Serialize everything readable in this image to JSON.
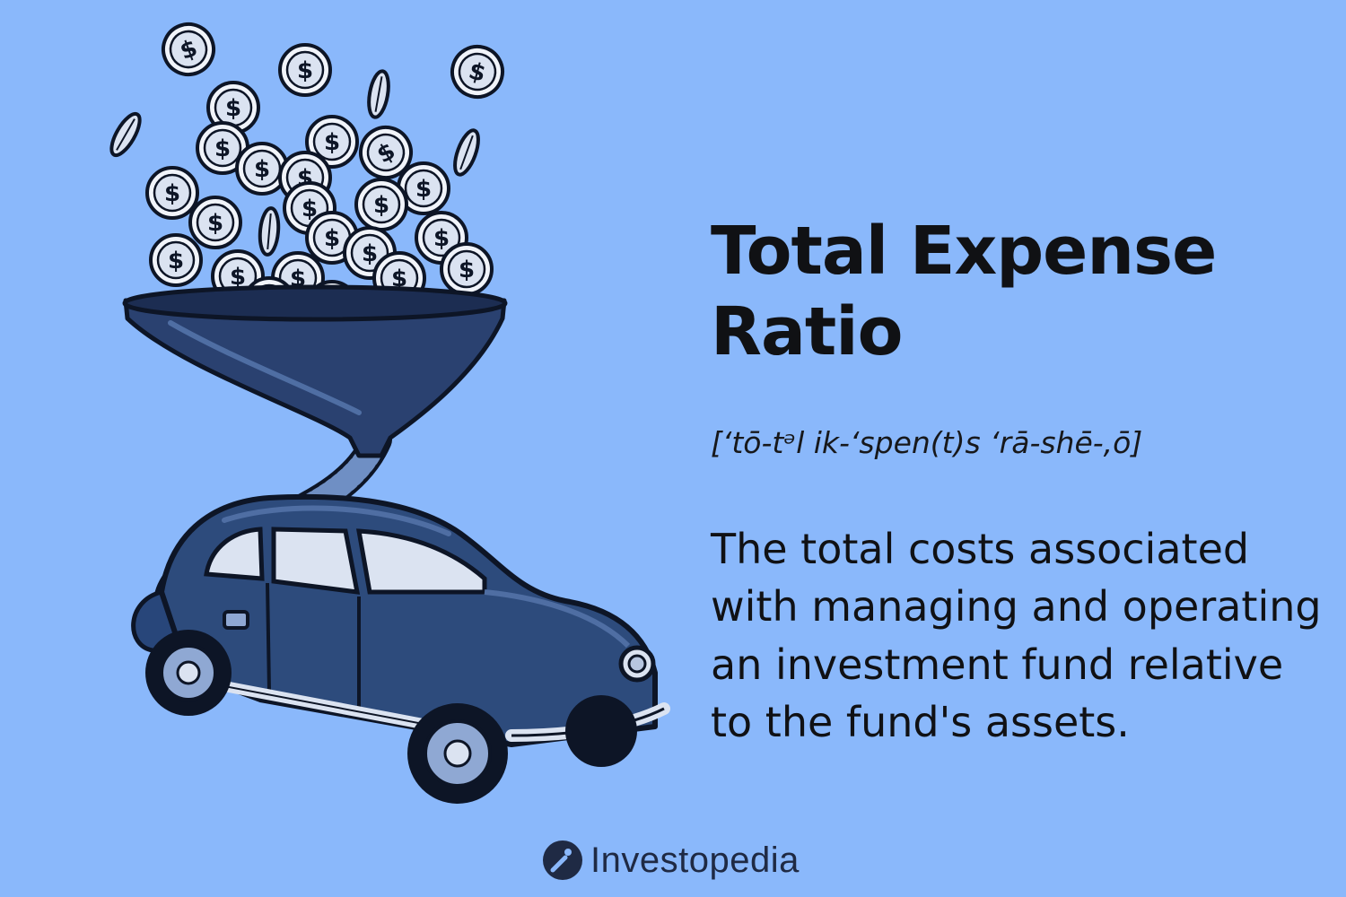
{
  "title": "Total Expense Ratio",
  "pronunciation": "[‘tō-tᵊl ik-‘spen(t)s ‘rā-shē-,ō]",
  "definition": "The total costs associated with managing and operating an investment fund relative to the fund's assets.",
  "brand": {
    "name": "Investopedia",
    "icon": "investopedia-logo-icon"
  },
  "illustration": {
    "icons": [
      "coin-icon",
      "funnel-icon",
      "hose-icon",
      "car-icon"
    ]
  },
  "colors": {
    "background": "#8ab8fb",
    "text": "#101114",
    "funnel": "#2a4170",
    "car_body": "#2d4b7c",
    "coin": "#e6ecf7",
    "outline": "#0d1526"
  }
}
